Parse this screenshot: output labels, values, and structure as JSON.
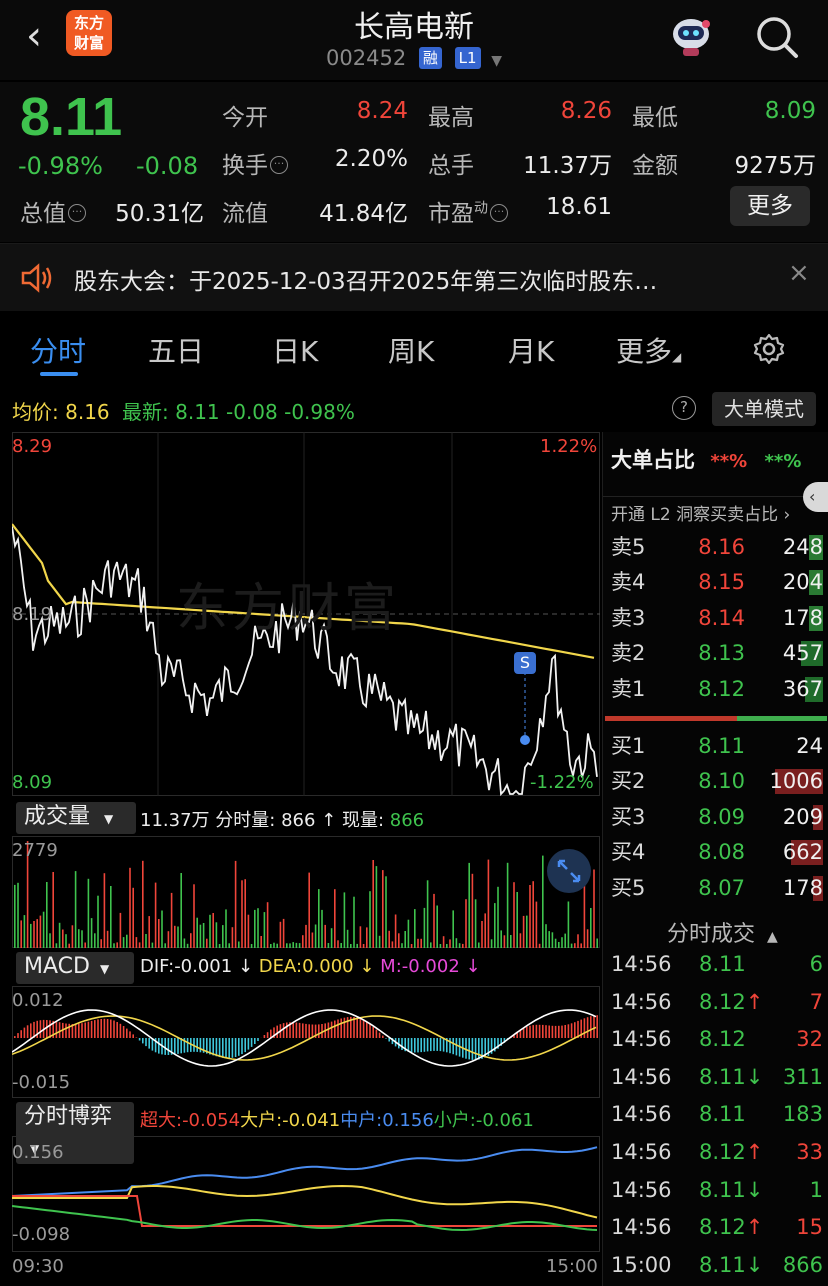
{
  "header": {
    "title": "长高电新",
    "code": "002452",
    "tag_margin": "融",
    "tag_level": "L1",
    "logo_line1": "东方",
    "logo_line2": "财富"
  },
  "quote": {
    "price": "8.11",
    "change_pct": "-0.98%",
    "change": "-0.08",
    "fields": [
      {
        "label": "今开",
        "value": "8.24",
        "color": "red"
      },
      {
        "label": "最高",
        "value": "8.26",
        "color": "red"
      },
      {
        "label": "最低",
        "value": "8.09",
        "color": "green"
      },
      {
        "label": "换手",
        "value": "2.20%",
        "color": "white"
      },
      {
        "label": "总手",
        "value": "11.37万",
        "color": "white"
      },
      {
        "label": "金额",
        "value": "9275万",
        "color": "white"
      },
      {
        "label": "总值",
        "value": "50.31亿",
        "color": "white"
      },
      {
        "label": "流值",
        "value": "41.84亿",
        "color": "white"
      },
      {
        "label": "市盈",
        "label_sup": "动",
        "value": "18.61",
        "color": "white"
      }
    ],
    "more_label": "更多"
  },
  "notice": {
    "text": "股东大会：于2025-12-03召开2025年第三次临时股东…",
    "close": "×"
  },
  "tabs": [
    {
      "label": "分时"
    },
    {
      "label": "五日"
    },
    {
      "label": "日K"
    },
    {
      "label": "周K"
    },
    {
      "label": "月K"
    },
    {
      "label": "更多"
    }
  ],
  "avg_bar": {
    "avg_label": "均价:",
    "avg_value": "8.16",
    "latest_label": "最新:",
    "latest_value": "8.11",
    "latest_change": "-0.08",
    "latest_pct": "-0.98%",
    "bigorder_label": "大单模式"
  },
  "price_chart": {
    "y_top": "8.29",
    "y_mid": "8.19",
    "y_bottom": "8.09",
    "pct_top": "1.22%",
    "pct_bottom": "-1.22%",
    "watermark": "东方财富",
    "signal": "S"
  },
  "volume": {
    "label": "成交量",
    "total": "11.37万",
    "minute_label": "分时量:",
    "minute_value": "866",
    "now_label": "现量:",
    "now_value": "866",
    "y_max": "2779"
  },
  "macd": {
    "label": "MACD",
    "dif": "DIF:-0.001",
    "dea": "DEA:0.000",
    "m": "M:-0.002",
    "y_top": "0.012",
    "y_bottom": "-0.015"
  },
  "game": {
    "label": "分时博弈",
    "super": "超大:-0.054",
    "big": "大户:-0.041",
    "mid": "中户:0.156",
    "small": "小户:-0.061",
    "y_top": "0.156",
    "y_bottom": "-0.098",
    "x_start": "09:30",
    "x_end": "15:00"
  },
  "panel": {
    "title": "大单占比",
    "red_mask": "**%",
    "green_mask": "**%",
    "l2_link": "开通 L2 洞察买卖占比",
    "asks": [
      {
        "label": "卖5",
        "price": "8.16",
        "vol": "248",
        "pc": "red"
      },
      {
        "label": "卖4",
        "price": "8.15",
        "vol": "204",
        "pc": "red"
      },
      {
        "label": "卖3",
        "price": "8.14",
        "vol": "178",
        "pc": "red"
      },
      {
        "label": "卖2",
        "price": "8.13",
        "vol": "457",
        "pc": "green"
      },
      {
        "label": "卖1",
        "price": "8.12",
        "vol": "367",
        "pc": "green"
      }
    ],
    "bids": [
      {
        "label": "买1",
        "price": "8.11",
        "vol": "24",
        "pc": "green"
      },
      {
        "label": "买2",
        "price": "8.10",
        "vol": "1006",
        "pc": "green"
      },
      {
        "label": "买3",
        "price": "8.09",
        "vol": "209",
        "pc": "green"
      },
      {
        "label": "买4",
        "price": "8.08",
        "vol": "662",
        "pc": "green"
      },
      {
        "label": "买5",
        "price": "8.07",
        "vol": "178",
        "pc": "green"
      }
    ],
    "trades_title": "分时成交",
    "trades": [
      {
        "time": "14:56",
        "price": "8.11",
        "arrow": "",
        "vol": "6",
        "vc": "green"
      },
      {
        "time": "14:56",
        "price": "8.12",
        "arrow": "↑",
        "vol": "7",
        "vc": "red"
      },
      {
        "time": "14:56",
        "price": "8.12",
        "arrow": "",
        "vol": "32",
        "vc": "red"
      },
      {
        "time": "14:56",
        "price": "8.11",
        "arrow": "↓",
        "vol": "311",
        "vc": "green"
      },
      {
        "time": "14:56",
        "price": "8.11",
        "arrow": "",
        "vol": "183",
        "vc": "green"
      },
      {
        "time": "14:56",
        "price": "8.12",
        "arrow": "↑",
        "vol": "33",
        "vc": "red"
      },
      {
        "time": "14:56",
        "price": "8.11",
        "arrow": "↓",
        "vol": "1",
        "vc": "green"
      },
      {
        "time": "14:56",
        "price": "8.12",
        "arrow": "↑",
        "vol": "15",
        "vc": "red"
      },
      {
        "time": "15:00",
        "price": "8.11",
        "arrow": "↓",
        "vol": "866",
        "vc": "green"
      }
    ]
  }
}
